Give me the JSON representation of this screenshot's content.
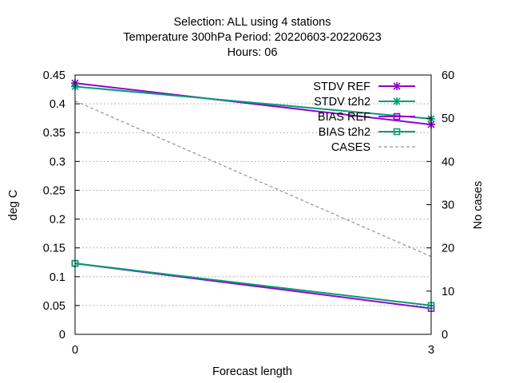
{
  "chart_data": {
    "type": "line",
    "title_lines": [
      "Selection: ALL using     4 stations",
      "Temperature 300hPa   Period: 20220603-20220623",
      "Hours:  06"
    ],
    "xlabel": "Forecast length",
    "ylabel": "deg C",
    "y2label": "No cases",
    "x_ticks": [
      0,
      3
    ],
    "x_tick_labels": [
      "0",
      "3"
    ],
    "xlim": [
      0,
      3
    ],
    "ylim": [
      0,
      0.45
    ],
    "y_ticks": [
      0,
      0.05,
      0.1,
      0.15,
      0.2,
      0.25,
      0.3,
      0.35,
      0.4,
      0.45
    ],
    "y_tick_labels": [
      "0",
      "0.05",
      "0.1",
      "0.15",
      "0.2",
      "0.25",
      "0.3",
      "0.35",
      "0.4",
      "0.45"
    ],
    "y2lim": [
      0,
      60
    ],
    "y2_ticks": [
      0,
      10,
      20,
      30,
      40,
      50,
      60
    ],
    "y2_tick_labels": [
      "0",
      "10",
      "20",
      "30",
      "40",
      "50",
      "60"
    ],
    "grid": "horizontal dotted",
    "legend_position": "top-right",
    "series": [
      {
        "name": "STDV REF",
        "x": [
          0,
          3
        ],
        "y": [
          0.436,
          0.364
        ],
        "color": "#9400d3",
        "marker": "star",
        "axis": "y1",
        "dash": "solid"
      },
      {
        "name": "STDV t2h2",
        "x": [
          0,
          3
        ],
        "y": [
          0.43,
          0.374
        ],
        "color": "#009e73",
        "marker": "star",
        "axis": "y1",
        "dash": "solid"
      },
      {
        "name": "BIAS REF",
        "x": [
          0,
          3
        ],
        "y": [
          0.123,
          0.045
        ],
        "color": "#9400d3",
        "marker": "square",
        "axis": "y1",
        "dash": "solid"
      },
      {
        "name": "BIAS t2h2",
        "x": [
          0,
          3
        ],
        "y": [
          0.123,
          0.05
        ],
        "color": "#009e73",
        "marker": "square",
        "axis": "y1",
        "dash": "solid"
      },
      {
        "name": "CASES",
        "x": [
          0,
          3
        ],
        "y": [
          54,
          18
        ],
        "color": "#999999",
        "marker": "none",
        "axis": "y2",
        "dash": "dashed"
      }
    ]
  }
}
